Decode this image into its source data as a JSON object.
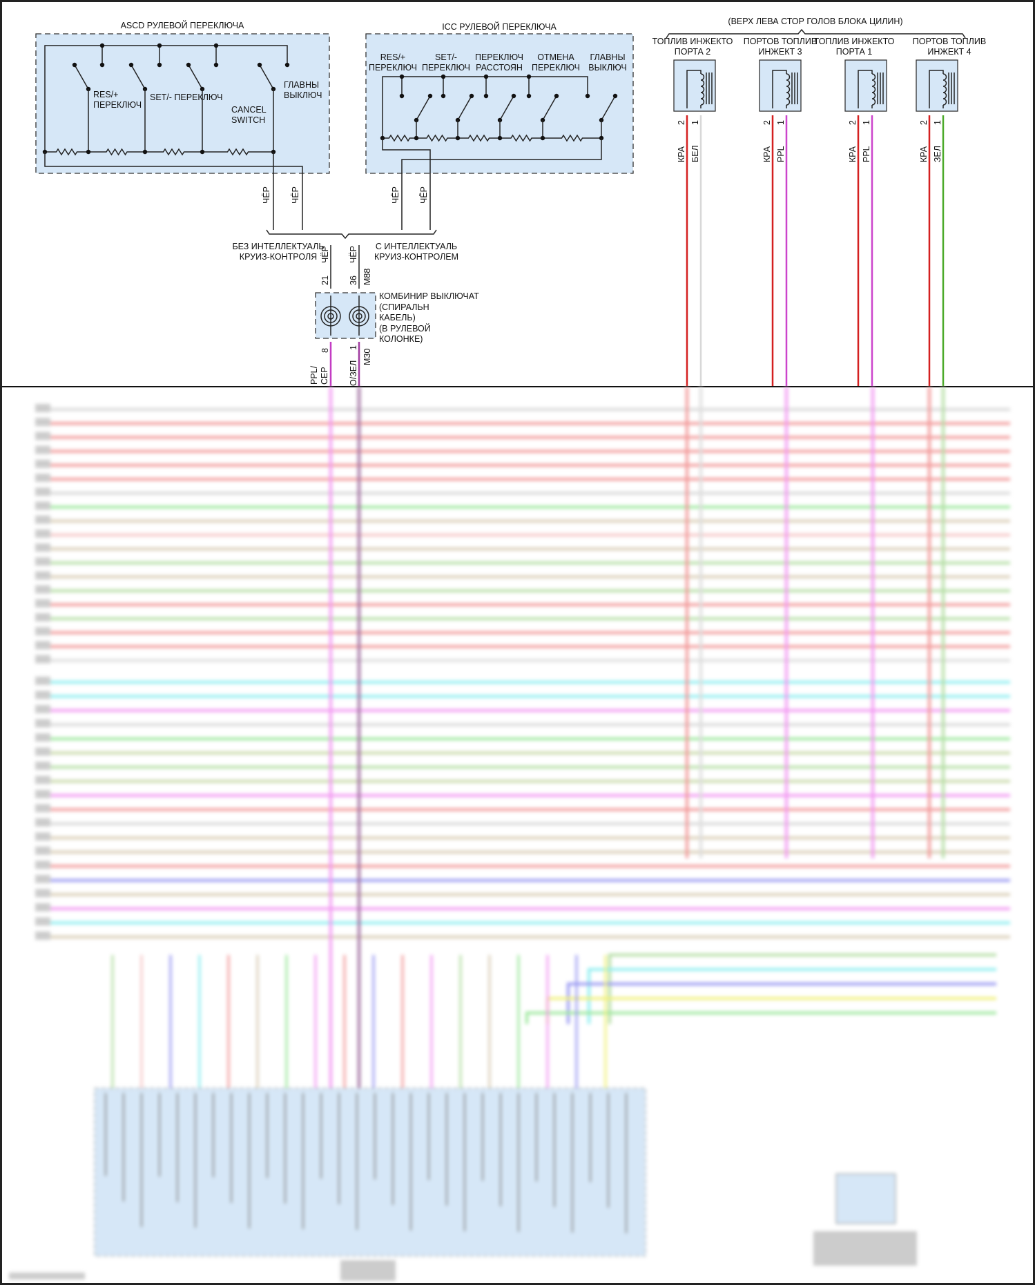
{
  "ascd": {
    "title": "ASCD РУЛЕВОЙ ПЕРЕКЛЮЧА",
    "res_label": [
      "RES/+",
      "ПЕРЕКЛЮЧ"
    ],
    "set_label": "SET/- ПЕРЕКЛЮЧ",
    "cancel_label": [
      "CANCEL",
      "SWITCH"
    ],
    "main_label": [
      "ГЛАВНЫ",
      "ВЫКЛЮЧ"
    ],
    "wire_colors": [
      "ЧЁР",
      "ЧЁР"
    ]
  },
  "icc": {
    "title": "ICC РУЛЕВОЙ ПЕРЕКЛЮЧА",
    "switches": [
      [
        "RES/+",
        "ПЕРЕКЛЮЧ"
      ],
      [
        "SET/-",
        "ПЕРЕКЛЮЧ"
      ],
      [
        "ПЕРЕКЛЮЧ",
        "РАССТОЯН"
      ],
      [
        "ОТМЕНА",
        "ПЕРЕКЛЮЧ"
      ],
      [
        "ГЛАВНЫ",
        "ВЫКЛЮЧ"
      ]
    ],
    "wire_colors": [
      "ЧЁР",
      "ЧЁР"
    ]
  },
  "variants": {
    "without": [
      "БЕЗ ИНТЕЛЛЕКТУАЛЬ",
      "КРУИЗ-КОНТРОЛЯ"
    ],
    "with": [
      "С ИНТЕЛЛЕКТУАЛЬ",
      "КРУИЗ-КОНТРОЛЕМ"
    ]
  },
  "combination_switch": {
    "label": [
      "КОМБИНИР ВЫКЛЮЧАТ",
      "(СПИРАЛЬН",
      "КАБЕЛЬ)",
      "(В РУЛЕВОЙ",
      "КОЛОНКЕ)"
    ],
    "upper": {
      "pins": [
        "21",
        "36"
      ],
      "wire_colors": [
        "ЧЁР",
        "ЧЁР"
      ],
      "connector": "M88"
    },
    "lower": {
      "pins": [
        "8",
        "1"
      ],
      "wire_colors": [
        "PPL/\nСЕР",
        "О/ЗЕЛ"
      ],
      "wire_color_lines": [
        "PPL/",
        "СЕР"
      ],
      "connector": "M30"
    }
  },
  "injectors": {
    "group_title": "(ВЕРХ ЛЕВА СТОР ГОЛОВ БЛОКА ЦИЛИН)",
    "items": [
      {
        "label": [
          "ТОПЛИВ ИНЖЕКТО",
          "ПОРТА 2"
        ],
        "pins": [
          "2",
          "1"
        ],
        "wires": [
          "КРА",
          "БЕЛ"
        ],
        "colors": [
          "#d42020",
          "#d8d8d8"
        ]
      },
      {
        "label": [
          "ПОРТОВ ТОПЛИВ",
          "ИНЖЕКТ 3"
        ],
        "pins": [
          "2",
          "1"
        ],
        "wires": [
          "КРА",
          "PPL"
        ],
        "colors": [
          "#d42020",
          "#cc44cc"
        ]
      },
      {
        "label": [
          "ТОПЛИВ ИНЖЕКТО",
          "ПОРТА 1"
        ],
        "pins": [
          "2",
          "1"
        ],
        "wires": [
          "КРА",
          "PPL"
        ],
        "colors": [
          "#d42020",
          "#cc44cc"
        ]
      },
      {
        "label": [
          "ПОРТОВ ТОПЛИВ",
          "ИНЖЕКТ 4"
        ],
        "pins": [
          "2",
          "1"
        ],
        "wires": [
          "КРА",
          "ЗЕЛ"
        ],
        "colors": [
          "#d42020",
          "#4caa2a"
        ]
      }
    ]
  },
  "blurred_section": {
    "row_colors_upper": [
      "#d8d8d8",
      "#f29a9a",
      "#f29a9a",
      "#f29a9a",
      "#f29a9a",
      "#f29a9a",
      "#d8d8d8",
      "#9de89d",
      "#d9cdb5",
      "#f5c6c6",
      "#d9cdb5",
      "#b5dea5",
      "#d9cdb5",
      "#b5dea5",
      "#f29a9a",
      "#b5dea5",
      "#f29a9a",
      "#f29a9a",
      "#dddddd"
    ],
    "row_colors_lower": [
      "#8eeef0",
      "#8eeef0",
      "#f29af2",
      "#d8d8d8",
      "#9de89d",
      "#c8d8a8",
      "#b5dea5",
      "#c8d8a8",
      "#f29af2",
      "#f29a9a",
      "#d8d8d8",
      "#d9cdb5",
      "#d9cdb5",
      "#f29a9a",
      "#9a9af2",
      "#d9cdb5",
      "#f29af2",
      "#8eeef0",
      "#d9cdb5"
    ],
    "row_colors_bottom": [
      "#b5dea5",
      "#8eeef0",
      "#9a9af2",
      "#f0f07a",
      "#9de89d"
    ]
  }
}
